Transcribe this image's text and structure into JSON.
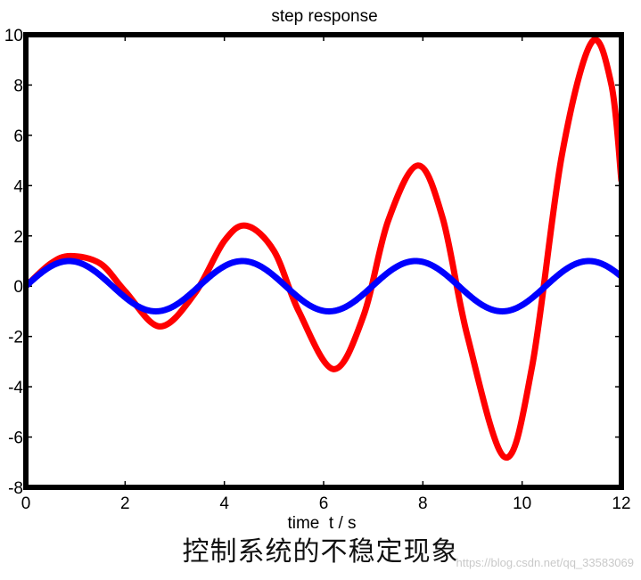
{
  "caption": "控制系统的不稳定现象",
  "watermark": "https://blog.csdn.net/qq_33583069",
  "chart_data": {
    "type": "line",
    "title": "step response",
    "xlabel": "time  t / s",
    "ylabel": "",
    "xlim": [
      0,
      12
    ],
    "ylim": [
      -8,
      10
    ],
    "xticks": [
      0,
      2,
      4,
      6,
      8,
      10,
      12
    ],
    "yticks": [
      -8,
      -6,
      -4,
      -2,
      0,
      2,
      4,
      6,
      8,
      10
    ],
    "grid": false,
    "legend": "none",
    "series": [
      {
        "color": "#ff0000",
        "x": [
          0,
          0.5,
          0.9,
          1.5,
          2.0,
          2.7,
          3.4,
          4.0,
          4.45,
          5.0,
          5.5,
          6.2,
          6.8,
          7.3,
          7.9,
          8.4,
          8.9,
          9.65,
          10.2,
          10.8,
          11.4,
          11.8,
          12.0
        ],
        "y": [
          0,
          0.9,
          1.2,
          0.9,
          -0.2,
          -1.6,
          -0.3,
          1.8,
          2.4,
          1.4,
          -1.0,
          -3.3,
          -1.2,
          2.6,
          4.8,
          2.7,
          -2.0,
          -6.8,
          -3.2,
          5.2,
          9.7,
          8.0,
          4.2
        ]
      },
      {
        "color": "#0000ff",
        "function": "sin(1.8t)",
        "x": [
          0,
          0.87,
          2.62,
          4.36,
          6.11,
          7.85,
          9.6,
          11.34,
          12.0
        ],
        "y": [
          0,
          1,
          -1,
          1,
          -1,
          1,
          -1,
          1,
          0.4
        ]
      }
    ]
  }
}
